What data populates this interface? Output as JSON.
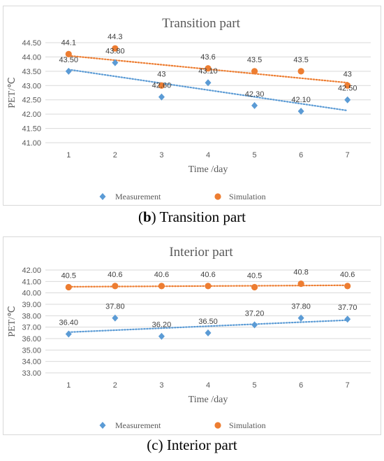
{
  "chart_data": [
    {
      "type": "scatter",
      "title": "Transition part",
      "xlabel": "Time /day",
      "ylabel": "PET/℃",
      "x": [
        1,
        2,
        3,
        4,
        5,
        6,
        7
      ],
      "xlim": [
        0.5,
        7.5
      ],
      "ylim": [
        41.0,
        44.5
      ],
      "yticks": [
        "41.00",
        "41.50",
        "42.00",
        "42.50",
        "43.00",
        "43.50",
        "44.00",
        "44.50"
      ],
      "grid": true,
      "legend_position": "bottom",
      "trendlines": "linear, dotted",
      "series": [
        {
          "name": "Measurement",
          "marker": "diamond",
          "color": "#5b9bd5",
          "values": [
            43.5,
            43.8,
            42.6,
            43.1,
            42.3,
            42.1,
            42.5
          ],
          "labels": [
            "43.50",
            "43.80",
            "42.60",
            "43.10",
            "42.30",
            "42.10",
            "42.50"
          ]
        },
        {
          "name": "Simulation",
          "marker": "circle",
          "color": "#ed7d31",
          "values": [
            44.1,
            44.3,
            43.0,
            43.6,
            43.5,
            43.5,
            43.0
          ],
          "labels": [
            "44.1",
            "44.3",
            "43",
            "43.6",
            "43.5",
            "43.5",
            "43"
          ]
        }
      ]
    },
    {
      "type": "scatter",
      "title": "Interior part",
      "xlabel": "Time /day",
      "ylabel": "PET/℃",
      "x": [
        1,
        2,
        3,
        4,
        5,
        6,
        7
      ],
      "xlim": [
        0.5,
        7.5
      ],
      "ylim": [
        33.0,
        42.0
      ],
      "yticks": [
        "33.00",
        "34.00",
        "35.00",
        "36.00",
        "37.00",
        "38.00",
        "39.00",
        "40.00",
        "41.00",
        "42.00"
      ],
      "grid": true,
      "legend_position": "bottom",
      "trendlines": "linear, dotted",
      "series": [
        {
          "name": "Measurement",
          "marker": "diamond",
          "color": "#5b9bd5",
          "values": [
            36.4,
            37.8,
            36.2,
            36.5,
            37.2,
            37.8,
            37.7
          ],
          "labels": [
            "36.40",
            "37.80",
            "36.20",
            "36.50",
            "37.20",
            "37.80",
            "37.70"
          ]
        },
        {
          "name": "Simulation",
          "marker": "circle",
          "color": "#ed7d31",
          "values": [
            40.5,
            40.6,
            40.6,
            40.6,
            40.5,
            40.8,
            40.6
          ],
          "labels": [
            "40.5",
            "40.6",
            "40.6",
            "40.6",
            "40.5",
            "40.8",
            "40.6"
          ]
        }
      ]
    }
  ],
  "captions": {
    "b_label": "b",
    "b_text": " Transition part",
    "c_text": "(c) Interior part"
  }
}
